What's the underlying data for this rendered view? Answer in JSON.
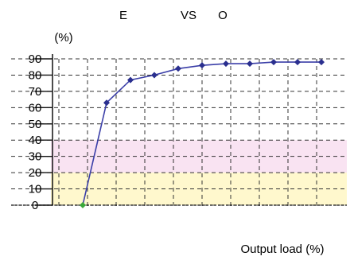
{
  "chart_data": {
    "type": "line",
    "title_parts": [
      "E",
      "VS",
      "O"
    ],
    "ylabel": "(%)",
    "xlabel": "Output load (%)",
    "ylim": [
      0,
      90
    ],
    "yticks": [
      0,
      10,
      20,
      30,
      40,
      50,
      60,
      70,
      80,
      90
    ],
    "grid": true,
    "colors": {
      "line": "#3b3fa8",
      "marker": "#2a2f8f",
      "start_marker": "#3aa83a",
      "grid": "#333333",
      "band_pink": "#f7dcef",
      "band_yellow": "#fff7c8"
    },
    "series": [
      {
        "points": [
          [
            0,
            0
          ],
          [
            5,
            63
          ],
          [
            10,
            77
          ],
          [
            15,
            80
          ],
          [
            20,
            84
          ],
          [
            25,
            86
          ],
          [
            30,
            87
          ],
          [
            35,
            87
          ],
          [
            40,
            88
          ],
          [
            45,
            88
          ],
          [
            50,
            88
          ]
        ]
      }
    ]
  }
}
